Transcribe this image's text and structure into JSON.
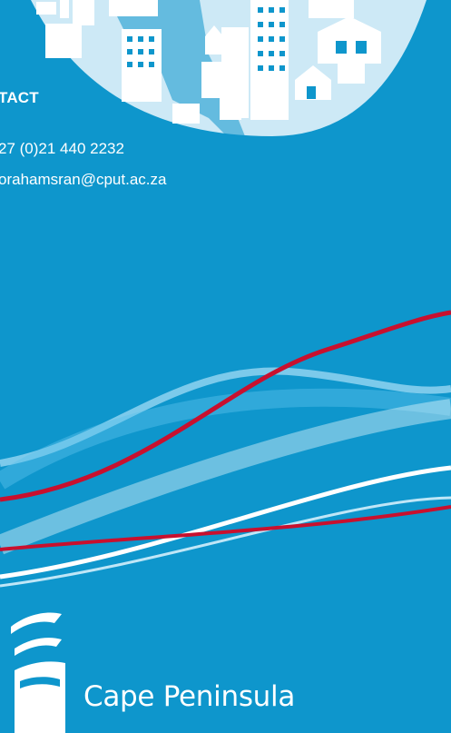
{
  "contact": {
    "heading": "TACT",
    "phone": "27 (0)21 440 2232",
    "email": "orahamsran@cput.ac.za"
  },
  "institution": {
    "name": "Cape Peninsula"
  },
  "colors": {
    "background": "#0e96cc",
    "globe": "#bfe3f4",
    "red_wave": "#c8102e",
    "white": "#ffffff"
  }
}
